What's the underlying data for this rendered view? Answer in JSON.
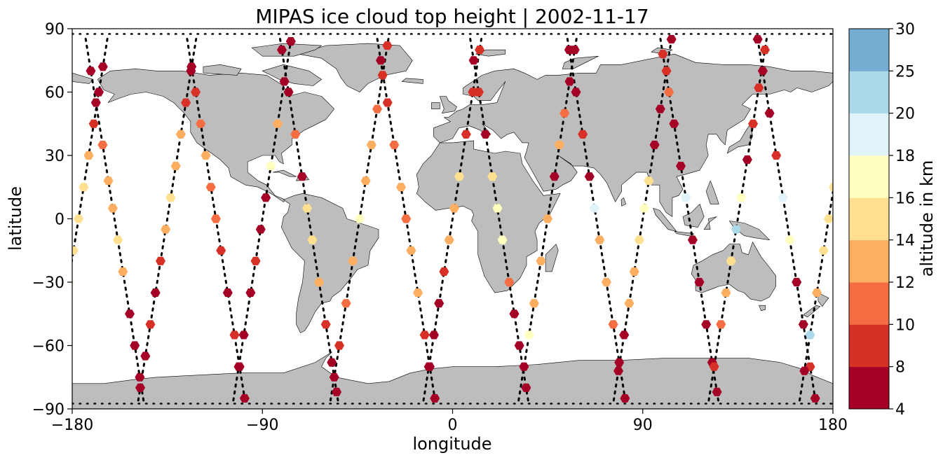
{
  "chart_data": {
    "type": "scatter",
    "title": "MIPAS ice cloud top height | 2002-11-17",
    "xlabel": "longitude",
    "ylabel": "latitude",
    "xlim": [
      -180,
      180
    ],
    "ylim": [
      -90,
      90
    ],
    "x_ticks": [
      -180,
      -90,
      0,
      90,
      180
    ],
    "x_tick_labels": [
      "−180",
      "−90",
      "0",
      "90",
      "180"
    ],
    "y_ticks": [
      -90,
      -60,
      -30,
      0,
      30,
      60,
      90
    ],
    "y_tick_labels": [
      "−90",
      "−60",
      "−30",
      "0",
      "30",
      "60",
      "90"
    ],
    "grid": false,
    "background_map": "world coastlines, land filled grey",
    "colorbar": {
      "label": "altitude in km",
      "boundaries": [
        4,
        8,
        10,
        12,
        14,
        16,
        18,
        20,
        25,
        30
      ],
      "tick_labels": [
        "4",
        "8",
        "10",
        "12",
        "14",
        "16",
        "18",
        "20",
        "25",
        "30"
      ],
      "colors": [
        "#a50026",
        "#d73027",
        "#f46d43",
        "#fdae61",
        "#fee090",
        "#ffffbf",
        "#e0f3f8",
        "#abd9e9",
        "#74add1",
        "#313695"
      ]
    },
    "colors": {
      "land": "#bdbdbd",
      "coast": "#000000",
      "track": "#000000",
      "c8": "#a50026",
      "c10": "#d73027",
      "c12": "#f46d43",
      "c14": "#fdae61",
      "c16": "#fee090",
      "c18": "#ffffbf",
      "c20": "#d8eef5",
      "c25": "#91c1dd",
      "c30": "#313695"
    },
    "orbits": [
      {
        "lon0": -177,
        "dir": "desc",
        "clouds": [
          [
            72,
            7
          ],
          [
            60,
            6
          ],
          [
            45,
            8
          ],
          [
            30,
            12
          ],
          [
            15,
            14
          ],
          [
            0,
            15
          ],
          [
            -15,
            14
          ],
          [
            -30,
            12
          ],
          [
            -45,
            7
          ],
          [
            -60,
            6
          ],
          [
            -72,
            6
          ]
        ]
      },
      {
        "lon0": -160,
        "dir": "asc",
        "clouds": [
          [
            -75,
            6
          ],
          [
            -60,
            6
          ],
          [
            -45,
            7
          ],
          [
            -25,
            12
          ],
          [
            -10,
            14
          ],
          [
            5,
            13
          ],
          [
            18,
            13
          ],
          [
            35,
            11
          ],
          [
            55,
            7
          ],
          [
            70,
            6
          ]
        ]
      },
      {
        "lon0": -135,
        "dir": "desc",
        "clouds": [
          [
            70,
            7
          ],
          [
            55,
            8
          ],
          [
            40,
            12
          ],
          [
            25,
            13
          ],
          [
            10,
            14
          ],
          [
            -5,
            12
          ],
          [
            -20,
            8
          ],
          [
            -35,
            7
          ],
          [
            -50,
            8
          ],
          [
            -65,
            6
          ],
          [
            -80,
            7
          ]
        ]
      },
      {
        "lon0": -112,
        "dir": "asc",
        "clouds": [
          [
            -85,
            6
          ],
          [
            -70,
            7
          ],
          [
            -55,
            8
          ],
          [
            -35,
            6
          ],
          [
            -15,
            9
          ],
          [
            0,
            10
          ],
          [
            15,
            11
          ],
          [
            30,
            12
          ],
          [
            45,
            11
          ],
          [
            60,
            9
          ],
          [
            72,
            6
          ]
        ]
      },
      {
        "lon0": -90,
        "dir": "desc",
        "clouds": [
          [
            84,
            6
          ],
          [
            65,
            7
          ],
          [
            45,
            13
          ],
          [
            25,
            17
          ],
          [
            10,
            6
          ],
          [
            -5,
            6
          ],
          [
            -20,
            8
          ],
          [
            -35,
            7
          ],
          [
            -55,
            6
          ],
          [
            -70,
            6
          ]
        ]
      },
      {
        "lon0": -68,
        "dir": "asc",
        "clouds": [
          [
            -82,
            6
          ],
          [
            -68,
            6
          ],
          [
            -50,
            8
          ],
          [
            -30,
            13
          ],
          [
            -10,
            15
          ],
          [
            5,
            14
          ],
          [
            20,
            6
          ],
          [
            40,
            10
          ],
          [
            60,
            6
          ],
          [
            80,
            7
          ]
        ]
      },
      {
        "lon0": -44,
        "dir": "desc",
        "clouds": [
          [
            82,
            8
          ],
          [
            68,
            9
          ],
          [
            52,
            10
          ],
          [
            35,
            12
          ],
          [
            18,
            13
          ],
          [
            0,
            17
          ],
          [
            -20,
            12
          ],
          [
            -40,
            11
          ],
          [
            -60,
            8
          ],
          [
            -75,
            7
          ]
        ]
      },
      {
        "lon0": -22,
        "dir": "asc",
        "clouds": [
          [
            -85,
            6
          ],
          [
            -70,
            7
          ],
          [
            -55,
            8
          ],
          [
            -35,
            12
          ],
          [
            -15,
            13
          ],
          [
            0,
            11
          ],
          [
            15,
            13
          ],
          [
            35,
            11
          ],
          [
            55,
            9
          ],
          [
            75,
            7
          ]
        ]
      },
      {
        "lon0": 0,
        "dir": "desc",
        "clouds": [
          [
            80,
            9
          ],
          [
            60,
            8
          ],
          [
            40,
            8
          ],
          [
            20,
            14
          ],
          [
            5,
            12
          ],
          [
            -10,
            12
          ],
          [
            -25,
            8
          ],
          [
            -40,
            7
          ],
          [
            -55,
            6
          ],
          [
            -70,
            6
          ]
        ]
      },
      {
        "lon0": 22,
        "dir": "asc",
        "clouds": [
          [
            -80,
            7
          ],
          [
            -60,
            6
          ],
          [
            -45,
            6
          ],
          [
            -30,
            10
          ],
          [
            -10,
            16
          ],
          [
            5,
            17
          ],
          [
            20,
            14
          ],
          [
            40,
            6
          ],
          [
            60,
            8
          ],
          [
            75,
            7
          ]
        ]
      },
      {
        "lon0": 45,
        "dir": "desc",
        "clouds": [
          [
            80,
            6
          ],
          [
            65,
            6
          ],
          [
            50,
            10
          ],
          [
            35,
            13
          ],
          [
            20,
            6
          ],
          [
            0,
            13
          ],
          [
            -20,
            13
          ],
          [
            -40,
            12
          ],
          [
            -55,
            17
          ],
          [
            -70,
            7
          ]
        ]
      },
      {
        "lon0": 68,
        "dir": "asc",
        "clouds": [
          [
            -85,
            6
          ],
          [
            -68,
            6
          ],
          [
            -50,
            11
          ],
          [
            -30,
            13
          ],
          [
            -10,
            12
          ],
          [
            5,
            19
          ],
          [
            20,
            6
          ],
          [
            40,
            8
          ],
          [
            60,
            7
          ],
          [
            80,
            6
          ]
        ]
      },
      {
        "lon0": 90,
        "dir": "desc",
        "clouds": [
          [
            85,
            6
          ],
          [
            70,
            8
          ],
          [
            52,
            6
          ],
          [
            35,
            6
          ],
          [
            18,
            15
          ],
          [
            5,
            17
          ],
          [
            -10,
            15
          ],
          [
            -25,
            12
          ],
          [
            -40,
            13
          ],
          [
            -55,
            7
          ],
          [
            -72,
            6
          ]
        ]
      },
      {
        "lon0": 112,
        "dir": "asc",
        "clouds": [
          [
            -82,
            6
          ],
          [
            -68,
            7
          ],
          [
            -50,
            7
          ],
          [
            -30,
            6
          ],
          [
            -10,
            7
          ],
          [
            10,
            19
          ],
          [
            25,
            6
          ],
          [
            45,
            6
          ],
          [
            60,
            10
          ],
          [
            78,
            8
          ]
        ]
      },
      {
        "lon0": 135,
        "dir": "desc",
        "clouds": [
          [
            80,
            8
          ],
          [
            62,
            9
          ],
          [
            45,
            8
          ],
          [
            28,
            6
          ],
          [
            10,
            17
          ],
          [
            -5,
            20
          ],
          [
            -20,
            15
          ],
          [
            -35,
            12
          ],
          [
            -50,
            11
          ],
          [
            -70,
            8
          ]
        ]
      },
      {
        "lon0": 158,
        "dir": "asc",
        "clouds": [
          [
            -85,
            7
          ],
          [
            -70,
            8
          ],
          [
            -50,
            7
          ],
          [
            -30,
            6
          ],
          [
            -10,
            17
          ],
          [
            10,
            19
          ],
          [
            30,
            8
          ],
          [
            50,
            6
          ],
          [
            70,
            7
          ],
          [
            85,
            7
          ]
        ]
      },
      {
        "lon0": 178,
        "dir": "desc",
        "clouds": [
          [
            80,
            6
          ],
          [
            65,
            8
          ],
          [
            45,
            10
          ],
          [
            30,
            12
          ],
          [
            15,
            15
          ],
          [
            0,
            14
          ],
          [
            -15,
            15
          ],
          [
            -35,
            12
          ],
          [
            -55,
            20
          ],
          [
            -72,
            6
          ]
        ]
      }
    ]
  }
}
